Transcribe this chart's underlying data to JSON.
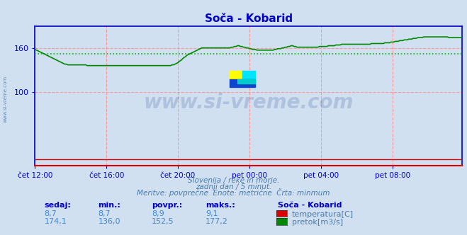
{
  "title": "Soča - Kobarid",
  "bg_color": "#d0e0f0",
  "plot_bg_color": "#d0e0f0",
  "grid_color": "#ff9999",
  "x_tick_labels": [
    "čet 12:00",
    "čet 16:00",
    "čet 20:00",
    "pet 00:00",
    "pet 04:00",
    "pet 08:00"
  ],
  "x_tick_positions": [
    0,
    48,
    96,
    144,
    192,
    240
  ],
  "y_ticks": [
    100,
    160
  ],
  "y_min": 0,
  "y_max": 190,
  "avg_line_value": 152.5,
  "avg_line_color": "#00bb00",
  "temp_color": "#dd0000",
  "flow_color": "#008800",
  "watermark_text": "www.si-vreme.com",
  "watermark_color": "#1a3a8a",
  "watermark_alpha": 0.18,
  "subtitle1": "Slovenija / reke in morje.",
  "subtitle2": "zadnji dan / 5 minut.",
  "subtitle3": "Meritve: povprečne  Enote: metrične  Črta: minmum",
  "subtitle_color": "#4a7aaa",
  "table_label_color": "#0000cc",
  "table_value_color": "#4488cc",
  "legend_station": "Soča - Kobarid",
  "legend_temp_label": "temperatura[C]",
  "legend_flow_label": "pretok[m3/s]",
  "stats_headers": [
    "sedaj:",
    "min.:",
    "povpr.:",
    "maks.:"
  ],
  "stats_temp": [
    8.7,
    8.7,
    8.9,
    9.1
  ],
  "stats_flow": [
    174.1,
    136.0,
    152.5,
    177.2
  ],
  "flow_data": [
    158,
    157,
    156,
    155,
    154,
    153,
    152,
    151,
    150,
    149,
    148,
    147,
    146,
    145,
    144,
    143,
    142,
    141,
    140,
    139,
    138,
    138,
    137,
    137,
    137,
    137,
    137,
    137,
    137,
    137,
    137,
    137,
    137,
    137,
    137,
    136,
    136,
    136,
    136,
    136,
    136,
    136,
    136,
    136,
    136,
    136,
    136,
    136,
    136,
    136,
    136,
    136,
    136,
    136,
    136,
    136,
    136,
    136,
    136,
    136,
    136,
    136,
    136,
    136,
    136,
    136,
    136,
    136,
    136,
    136,
    136,
    136,
    136,
    136,
    136,
    136,
    136,
    136,
    136,
    136,
    136,
    136,
    136,
    136,
    136,
    136,
    136,
    136,
    136,
    136,
    136,
    136,
    137,
    137,
    138,
    139,
    140,
    142,
    143,
    145,
    147,
    148,
    150,
    151,
    152,
    153,
    154,
    155,
    156,
    157,
    158,
    159,
    160,
    160,
    160,
    160,
    160,
    160,
    160,
    160,
    160,
    160,
    160,
    160,
    160,
    160,
    160,
    160,
    160,
    160,
    160,
    160,
    161,
    161,
    162,
    162,
    163,
    163,
    162,
    162,
    161,
    161,
    160,
    160,
    159,
    159,
    158,
    158,
    158,
    157,
    157,
    157,
    157,
    157,
    157,
    157,
    157,
    157,
    157,
    157,
    157,
    158,
    158,
    159,
    159,
    159,
    160,
    160,
    161,
    161,
    162,
    162,
    163,
    163,
    162,
    162,
    161,
    161,
    161,
    161,
    161,
    161,
    161,
    161,
    161,
    161,
    161,
    161,
    161,
    161,
    161,
    162,
    162,
    162,
    162,
    162,
    162,
    163,
    163,
    163,
    163,
    163,
    164,
    164,
    164,
    164,
    165,
    165,
    165,
    165,
    165,
    165,
    165,
    165,
    165,
    165,
    165,
    165,
    165,
    165,
    165,
    165,
    165,
    165,
    165,
    165,
    166,
    166,
    166,
    166,
    166,
    166,
    166,
    166,
    166,
    167,
    167,
    167,
    167,
    168,
    168,
    168,
    169,
    169,
    169,
    170,
    170,
    170,
    171,
    171,
    171,
    172,
    172,
    172,
    173,
    173,
    173,
    174,
    174,
    174,
    174,
    175,
    175,
    175,
    175,
    175,
    175,
    175,
    175,
    175,
    175,
    175,
    175,
    175,
    175,
    175,
    175,
    175,
    174,
    174,
    174,
    174,
    174,
    174,
    174,
    174,
    174,
    174
  ],
  "temp_data_flat": 8.7,
  "axis_spine_color": "#0000cc",
  "left_text": "www.si-vreme.com"
}
